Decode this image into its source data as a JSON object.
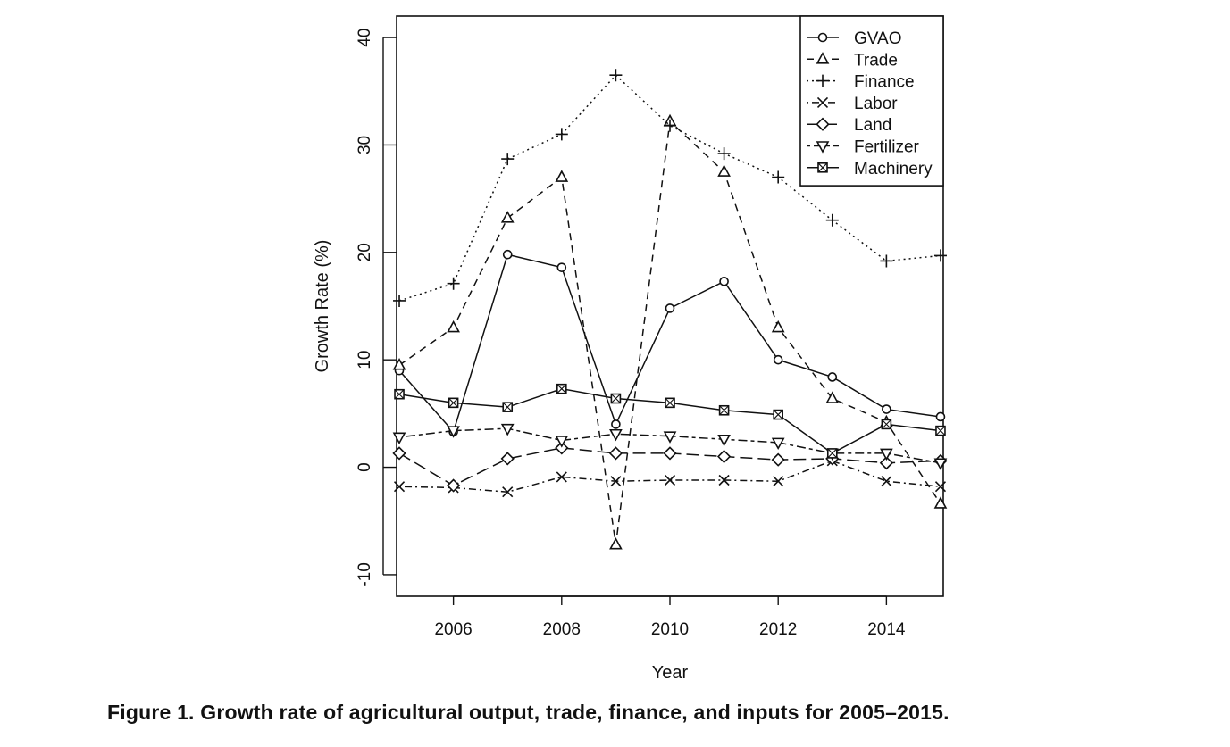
{
  "caption": "Figure 1. Growth rate of agricultural output, trade, finance, and inputs for 2005–2015.",
  "chart_data": {
    "type": "line",
    "title": "",
    "xlabel": "Year",
    "ylabel": "Growth Rate (%)",
    "xlim": [
      2004.95,
      2015.05
    ],
    "ylim": [
      -12,
      42
    ],
    "x_ticks": [
      2006,
      2008,
      2010,
      2012,
      2014
    ],
    "y_ticks": [
      -10,
      0,
      10,
      20,
      30,
      40
    ],
    "x_tick_labels": [
      "2006",
      "2008",
      "2010",
      "2012",
      "2014"
    ],
    "y_tick_labels": [
      "-10",
      "0",
      "10",
      "20",
      "30",
      "40"
    ],
    "grid": false,
    "legend_position": "top-right",
    "x": [
      2005,
      2006,
      2007,
      2008,
      2009,
      2010,
      2011,
      2012,
      2013,
      2014,
      2015
    ],
    "series": [
      {
        "name": "GVAO",
        "marker": "circle",
        "dash": "solid",
        "values": [
          9.0,
          3.3,
          19.8,
          18.6,
          4.0,
          14.8,
          17.3,
          10.0,
          8.4,
          5.4,
          4.7
        ]
      },
      {
        "name": "Trade",
        "marker": "triangle-up",
        "dash": "dashed",
        "values": [
          9.5,
          13.0,
          23.2,
          27.0,
          -7.2,
          32.2,
          27.5,
          13.0,
          6.4,
          4.2,
          -3.4
        ]
      },
      {
        "name": "Finance",
        "marker": "plus",
        "dash": "dotted",
        "values": [
          15.5,
          17.1,
          28.7,
          31.0,
          36.5,
          31.8,
          29.2,
          27.0,
          23.0,
          19.2,
          19.7
        ]
      },
      {
        "name": "Labor",
        "marker": "cross",
        "dash": "dotdash",
        "values": [
          -1.8,
          -1.9,
          -2.3,
          -0.9,
          -1.3,
          -1.2,
          -1.2,
          -1.3,
          0.6,
          -1.3,
          -1.8
        ]
      },
      {
        "name": "Land",
        "marker": "diamond",
        "dash": "longdash",
        "values": [
          1.3,
          -1.7,
          0.8,
          1.8,
          1.3,
          1.3,
          1.0,
          0.7,
          0.8,
          0.4,
          0.6
        ]
      },
      {
        "name": "Fertilizer",
        "marker": "triangle-down",
        "dash": "twodash",
        "values": [
          2.8,
          3.4,
          3.6,
          2.5,
          3.1,
          2.9,
          2.6,
          2.3,
          1.3,
          1.3,
          0.4
        ]
      },
      {
        "name": "Machinery",
        "marker": "square-x",
        "dash": "solid",
        "values": [
          6.8,
          6.0,
          5.6,
          7.3,
          6.4,
          6.0,
          5.3,
          4.9,
          1.3,
          4.0,
          3.4
        ]
      }
    ]
  }
}
